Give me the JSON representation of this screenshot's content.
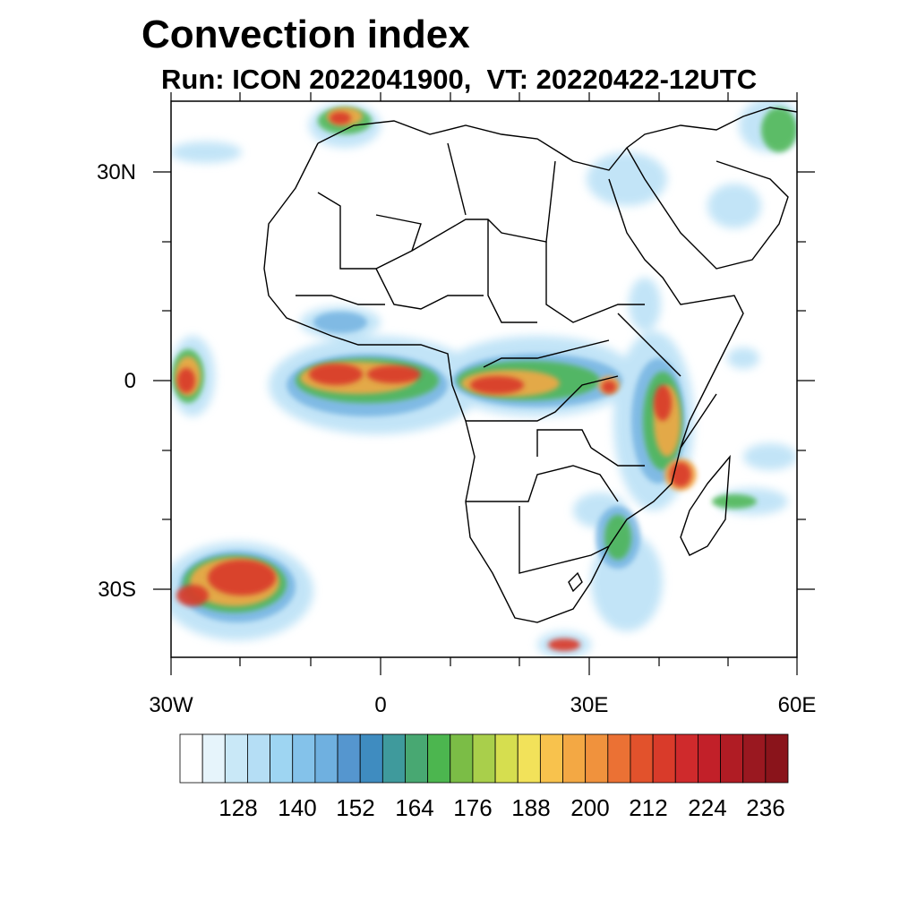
{
  "title": "Convection index",
  "subtitle": "Run: ICON 2022041900,  VT: 20220422-12UTC",
  "lat_labels": [
    "30N",
    "0",
    "30S"
  ],
  "lon_labels": [
    "30W",
    "0",
    "30E",
    "60E"
  ],
  "colorbar": {
    "labels": [
      "128",
      "140",
      "152",
      "164",
      "176",
      "188",
      "200",
      "212",
      "224",
      "236"
    ],
    "colors": [
      "#ffffff",
      "#e6f4fb",
      "#c9e8f7",
      "#b5def5",
      "#9ed5f2",
      "#84c2ea",
      "#6fb0e0",
      "#5596cf",
      "#3f8cc0",
      "#3f9a9c",
      "#48a872",
      "#4cb64f",
      "#7bbd46",
      "#a9cf4b",
      "#d6de4f",
      "#f2e25a",
      "#f8c24d",
      "#f3a844",
      "#f0923d",
      "#eb7134",
      "#e2522c",
      "#d93b2a",
      "#cf2a2c",
      "#c22029",
      "#b01c24",
      "#9a1820",
      "#8a141b"
    ]
  }
}
